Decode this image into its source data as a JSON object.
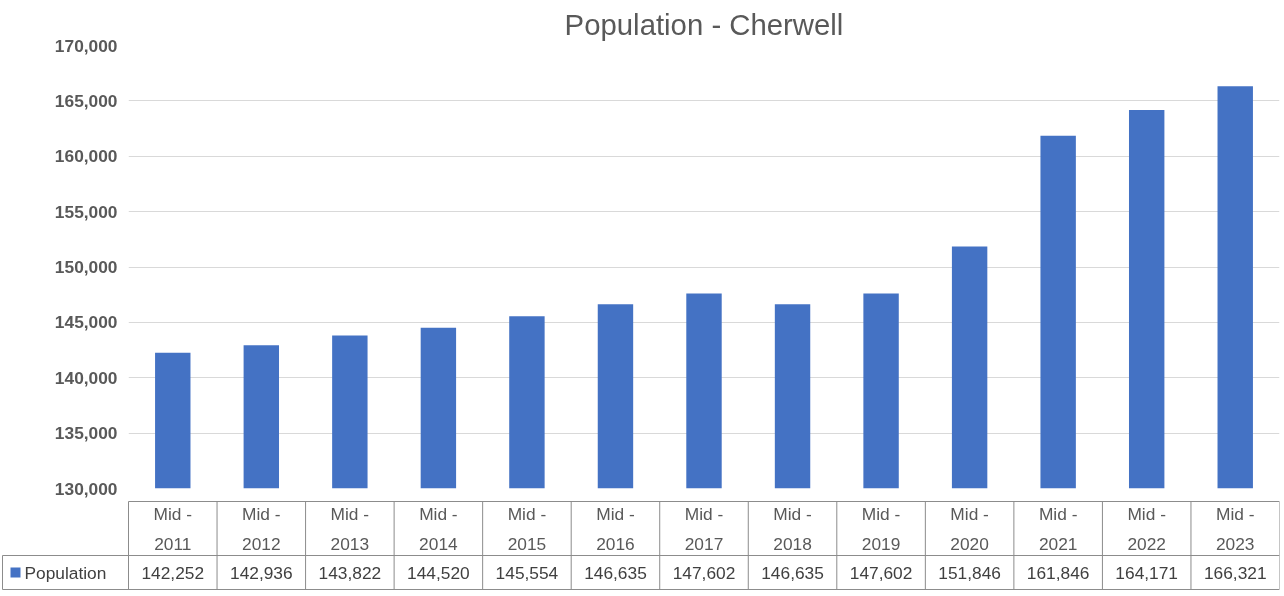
{
  "chart_data": {
    "type": "bar",
    "title": "Population - Cherwell",
    "categories": [
      "Mid - 2011",
      "Mid - 2012",
      "Mid - 2013",
      "Mid - 2014",
      "Mid - 2015",
      "Mid - 2016",
      "Mid - 2017",
      "Mid - 2018",
      "Mid - 2019",
      "Mid - 2020",
      "Mid - 2021",
      "Mid - 2022",
      "Mid - 2023"
    ],
    "series": [
      {
        "name": "Population",
        "color": "#4472c4",
        "values": [
          142252,
          142936,
          143822,
          144520,
          145554,
          146635,
          147602,
          146635,
          147602,
          151846,
          161846,
          164171,
          166321
        ],
        "value_labels": [
          "142,252",
          "142,936",
          "143,822",
          "144,520",
          "145,554",
          "146,635",
          "147,602",
          "146,635",
          "147,602",
          "151,846",
          "161,846",
          "164,171",
          "166,321"
        ]
      }
    ],
    "ylim": [
      130000,
      170000
    ],
    "yticks": [
      {
        "value": 130000,
        "label": "130,000"
      },
      {
        "value": 135000,
        "label": "135,000"
      },
      {
        "value": 140000,
        "label": "140,000"
      },
      {
        "value": 145000,
        "label": "145,000"
      },
      {
        "value": 150000,
        "label": "150,000"
      },
      {
        "value": 155000,
        "label": "155,000"
      },
      {
        "value": 160000,
        "label": "160,000"
      },
      {
        "value": 165000,
        "label": "165,000"
      },
      {
        "value": 170000,
        "label": "170,000"
      }
    ],
    "grid": "y",
    "legend": "bottom",
    "data_labels": true
  }
}
